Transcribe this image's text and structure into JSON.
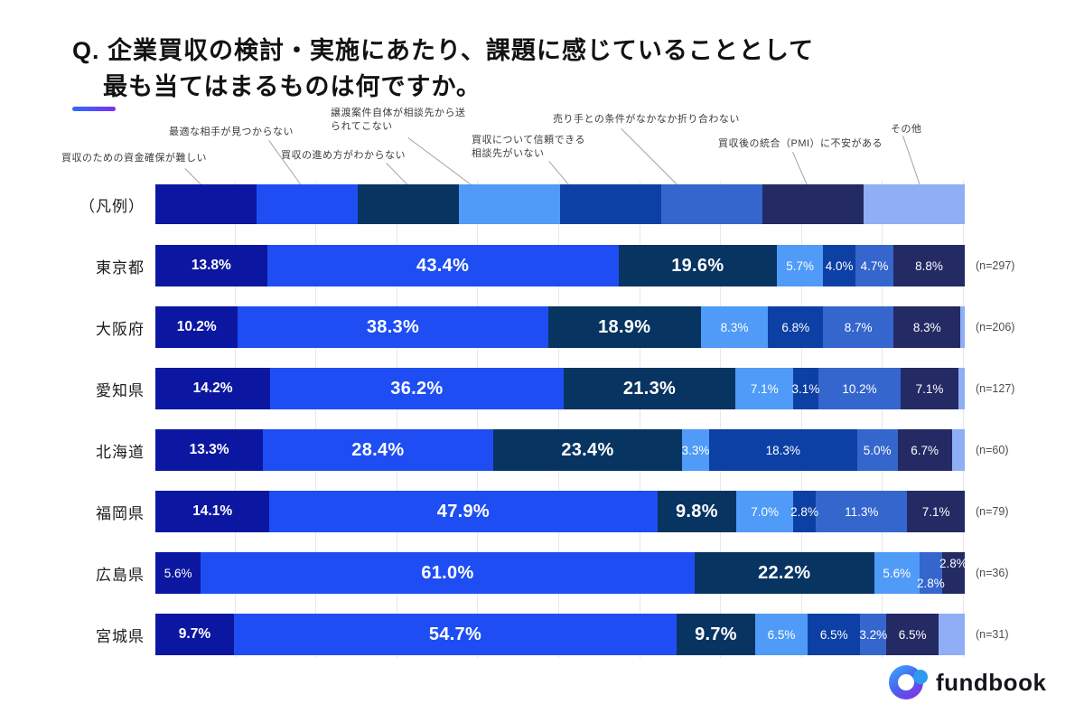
{
  "title": {
    "line1": "Q. 企業買収の検討・実施にあたり、課題に感じていることとして",
    "line2": "最も当てはまるものは何ですか。"
  },
  "accent_gradient": {
    "from": "#2f6bff",
    "to": "#7b2ff7"
  },
  "legend": {
    "row_label": "（凡例）",
    "categories": [
      {
        "label": "買収のための資金確保が難しい",
        "color": "#0c17a1"
      },
      {
        "label": "最適な相手が見つからない",
        "color": "#1e4ef3"
      },
      {
        "label": "買収の進め方がわからない",
        "color": "#083462"
      },
      {
        "label": "譲渡案件自体が相談先から送られてこない",
        "color": "#4f9bf7"
      },
      {
        "label": "買収について信頼できる相談先がいない",
        "color": "#0d40a5"
      },
      {
        "label": "売り手との条件がなかなか折り合わない",
        "color": "#3566cd"
      },
      {
        "label": "買収後の統合（PMI）に不安がある",
        "color": "#242a64"
      },
      {
        "label": "その他",
        "color": "#90aef6"
      }
    ]
  },
  "chart_data": {
    "type": "bar",
    "stacked": true,
    "orientation": "horizontal",
    "unit": "%",
    "xlim": [
      0,
      100
    ],
    "grid_interval_percent": 10,
    "categories": [
      "買収のための資金確保が難しい",
      "最適な相手が見つからない",
      "買収の進め方がわからない",
      "譲渡案件自体が相談先から送られてこない",
      "買収について信頼できる相談先がいない",
      "売り手との条件がなかなか折り合わない",
      "買収後の統合（PMI）に不安がある",
      "その他"
    ],
    "rows": [
      {
        "label": "東京都",
        "n_label": "(n=297)",
        "segments": [
          {
            "v": 13.8,
            "t": "13.8%"
          },
          {
            "v": 43.4,
            "t": "43.4%"
          },
          {
            "v": 19.6,
            "t": "19.6%"
          },
          {
            "v": 5.7,
            "t": "5.7%"
          },
          {
            "v": 4.0,
            "t": "4.0%"
          },
          {
            "v": 4.7,
            "t": "4.7%"
          },
          {
            "v": 8.8,
            "t": "8.8%"
          },
          {
            "v": 0,
            "t": ""
          }
        ]
      },
      {
        "label": "大阪府",
        "n_label": "(n=206)",
        "segments": [
          {
            "v": 10.2,
            "t": "10.2%"
          },
          {
            "v": 38.3,
            "t": "38.3%"
          },
          {
            "v": 18.9,
            "t": "18.9%"
          },
          {
            "v": 8.3,
            "t": "8.3%"
          },
          {
            "v": 6.8,
            "t": "6.8%"
          },
          {
            "v": 8.7,
            "t": "8.7%"
          },
          {
            "v": 8.3,
            "t": "8.3%"
          },
          {
            "v": 0.5,
            "t": ""
          }
        ]
      },
      {
        "label": "愛知県",
        "n_label": "(n=127)",
        "segments": [
          {
            "v": 14.2,
            "t": "14.2%"
          },
          {
            "v": 36.2,
            "t": "36.2%"
          },
          {
            "v": 21.3,
            "t": "21.3%"
          },
          {
            "v": 7.1,
            "t": "7.1%"
          },
          {
            "v": 3.1,
            "t": "3.1%"
          },
          {
            "v": 10.2,
            "t": "10.2%"
          },
          {
            "v": 7.1,
            "t": "7.1%"
          },
          {
            "v": 0.8,
            "t": ""
          }
        ]
      },
      {
        "label": "北海道",
        "n_label": "(n=60)",
        "segments": [
          {
            "v": 13.3,
            "t": "13.3%"
          },
          {
            "v": 28.4,
            "t": "28.4%"
          },
          {
            "v": 23.4,
            "t": "23.4%"
          },
          {
            "v": 3.3,
            "t": "3.3%"
          },
          {
            "v": 18.3,
            "t": "18.3%"
          },
          {
            "v": 5.0,
            "t": "5.0%"
          },
          {
            "v": 6.7,
            "t": "6.7%"
          },
          {
            "v": 1.6,
            "t": ""
          }
        ]
      },
      {
        "label": "福岡県",
        "n_label": "(n=79)",
        "segments": [
          {
            "v": 14.1,
            "t": "14.1%"
          },
          {
            "v": 47.9,
            "t": "47.9%"
          },
          {
            "v": 9.8,
            "t": "9.8%"
          },
          {
            "v": 7.0,
            "t": "7.0%"
          },
          {
            "v": 2.8,
            "t": "2.8%"
          },
          {
            "v": 11.3,
            "t": "11.3%"
          },
          {
            "v": 7.1,
            "t": "7.1%"
          },
          {
            "v": 0,
            "t": ""
          }
        ]
      },
      {
        "label": "広島県",
        "n_label": "(n=36)",
        "segments": [
          {
            "v": 5.6,
            "t": "5.6%"
          },
          {
            "v": 61.0,
            "t": "61.0%"
          },
          {
            "v": 22.2,
            "t": "22.2%"
          },
          {
            "v": 5.6,
            "t": "5.6%"
          },
          {
            "v": 0,
            "t": ""
          },
          {
            "v": 2.8,
            "t": "2.8%",
            "pos": "down"
          },
          {
            "v": 2.8,
            "t": "2.8%",
            "pos": "up"
          },
          {
            "v": 0,
            "t": ""
          }
        ]
      },
      {
        "label": "宮城県",
        "n_label": "(n=31)",
        "segments": [
          {
            "v": 9.7,
            "t": "9.7%"
          },
          {
            "v": 54.7,
            "t": "54.7%"
          },
          {
            "v": 9.7,
            "t": "9.7%"
          },
          {
            "v": 6.5,
            "t": "6.5%"
          },
          {
            "v": 6.5,
            "t": "6.5%"
          },
          {
            "v": 3.2,
            "t": "3.2%"
          },
          {
            "v": 6.5,
            "t": "6.5%"
          },
          {
            "v": 3.2,
            "t": ""
          }
        ]
      }
    ]
  },
  "logo": {
    "text": "fundbook"
  }
}
